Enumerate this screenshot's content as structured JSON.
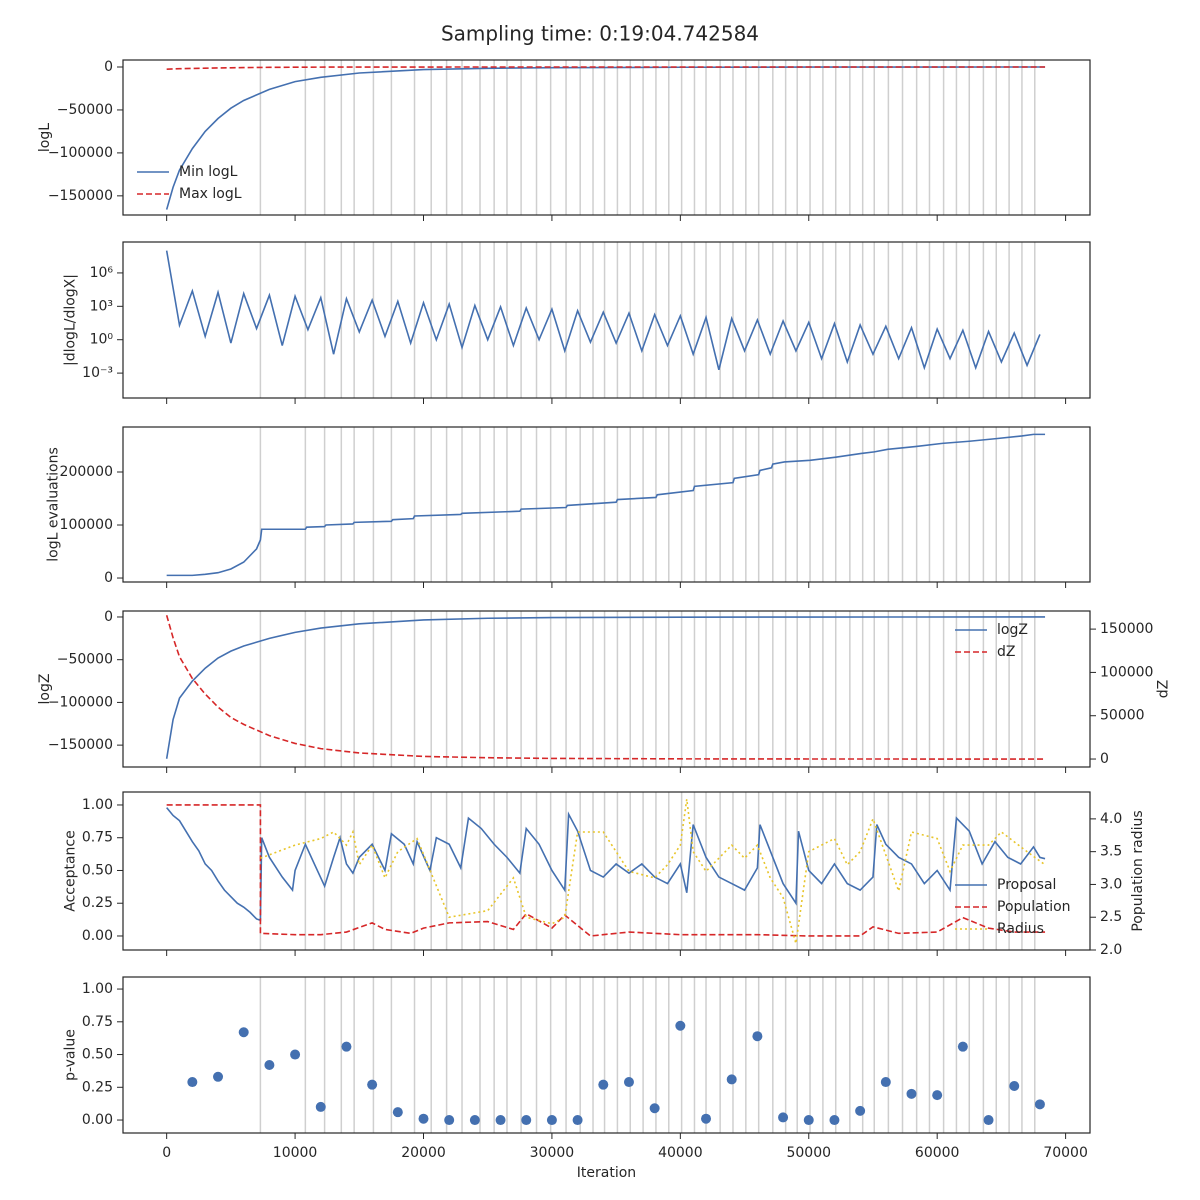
{
  "title": "Sampling time: 0:19:04.742584",
  "xaxis": {
    "label": "Iteration",
    "xlim": [
      -3400,
      71900
    ],
    "xticks": [
      0,
      10000,
      20000,
      30000,
      40000,
      50000,
      60000,
      70000
    ],
    "vlines": [
      7300,
      10800,
      12300,
      13600,
      14600,
      16100,
      17500,
      19300,
      20600,
      21800,
      23000,
      24400,
      25500,
      26500,
      27600,
      28800,
      29900,
      31100,
      32200,
      33200,
      34100,
      35100,
      36100,
      37100,
      38100,
      39100,
      40100,
      41100,
      42000,
      43100,
      44100,
      45100,
      46100,
      47200,
      48200,
      49100,
      50100,
      51100,
      52100,
      53200,
      54200,
      55100,
      56200,
      57300,
      58400,
      59400,
      60500,
      61500,
      62500,
      63600,
      64600,
      65600,
      66600,
      67600
    ]
  },
  "chart_data": [
    {
      "type": "line",
      "ylabel": "logL",
      "ylim": [
        -172300,
        8140
      ],
      "yticks": [
        {
          "value": 0,
          "label": "0"
        },
        {
          "value": -50000,
          "label": "−50000"
        },
        {
          "value": -100000,
          "label": "−100000"
        },
        {
          "value": -150000,
          "label": "−150000"
        }
      ],
      "legend": "lower left",
      "x": [
        0,
        500,
        1000,
        2000,
        3000,
        4000,
        5000,
        6000,
        8000,
        10000,
        12000,
        15000,
        20000,
        25000,
        30000,
        40000,
        50000,
        60000,
        68400
      ],
      "series": [
        {
          "name": "Min logL",
          "color": "#4470b0",
          "style": "solid",
          "values": [
            -166000,
            -140000,
            -120000,
            -95000,
            -75000,
            -60000,
            -48000,
            -39000,
            -26000,
            -17000,
            -12000,
            -7000,
            -3000,
            -1500,
            -800,
            -300,
            -100,
            -40,
            0
          ]
        },
        {
          "name": "Max logL",
          "color": "#d62728",
          "style": "dashed",
          "values": [
            -2500,
            -2200,
            -2000,
            -1700,
            -1400,
            -1100,
            -900,
            -700,
            -400,
            -250,
            -150,
            -80,
            -30,
            -10,
            0,
            0,
            0,
            0,
            0
          ]
        }
      ]
    },
    {
      "type": "line",
      "ylabel": "|dlogL/dlogX|",
      "log": true,
      "ylim": [
        5.8e-06,
        600000000
      ],
      "yticks": [
        {
          "value": 1000000,
          "label": "10⁶"
        },
        {
          "value": 1000,
          "label": "10³"
        },
        {
          "value": 1,
          "label": "10⁰"
        },
        {
          "value": 0.001,
          "label": "10⁻³"
        }
      ],
      "x": [
        0,
        1000,
        2000,
        3000,
        4000,
        5000,
        6000,
        7000,
        8000,
        9000,
        10000,
        11000,
        12000,
        13000,
        14000,
        15000,
        16000,
        17000,
        18000,
        19000,
        20000,
        21000,
        22000,
        23000,
        24000,
        25000,
        26000,
        27000,
        28000,
        29000,
        30000,
        31000,
        32000,
        33000,
        34000,
        35000,
        36000,
        37000,
        38000,
        39000,
        40000,
        41000,
        42000,
        43000,
        44000,
        45000,
        46000,
        47000,
        48000,
        49000,
        50000,
        51000,
        52000,
        53000,
        54000,
        55000,
        56000,
        57000,
        58000,
        59000,
        60000,
        61000,
        62000,
        63000,
        64000,
        65000,
        66000,
        67000,
        68000
      ],
      "series": [
        {
          "color": "#4470b0",
          "style": "solid",
          "values": [
            100000000,
            20,
            24000,
            2,
            18000,
            0.5,
            14000,
            10,
            10000,
            0.3,
            8000,
            8,
            6000,
            0.05,
            4800,
            5,
            3600,
            2,
            2800,
            0.5,
            2100,
            1,
            1600,
            0.2,
            1200,
            1,
            900,
            0.3,
            700,
            1,
            550,
            0.1,
            400,
            0.6,
            300,
            0.5,
            240,
            0.1,
            180,
            0.3,
            140,
            0.05,
            100,
            0.002,
            80,
            0.1,
            60,
            0.05,
            48,
            0.1,
            36,
            0.02,
            28,
            0.01,
            21,
            0.05,
            16,
            0.02,
            12,
            0.003,
            9,
            0.02,
            7,
            0.003,
            5.5,
            0.01,
            4,
            0.005,
            3
          ]
        }
      ]
    },
    {
      "type": "line",
      "ylabel": "logL evaluations",
      "ylim": [
        -7500,
        284900
      ],
      "yticks": [
        0,
        100000,
        200000
      ],
      "x": [
        0,
        2000,
        3000,
        4000,
        5000,
        6000,
        7000,
        7300,
        7400,
        10800,
        10900,
        12300,
        12400,
        14500,
        14600,
        17500,
        17600,
        19200,
        19300,
        22900,
        23000,
        27500,
        27600,
        31100,
        31200,
        35000,
        35100,
        38100,
        38200,
        41000,
        41100,
        44100,
        44200,
        46100,
        46200,
        47100,
        47200,
        48100,
        50100,
        52100,
        54100,
        55100,
        56200,
        58300,
        60400,
        62500,
        64600,
        66600,
        67500,
        68400
      ],
      "series": [
        {
          "color": "#4470b0",
          "style": "solid",
          "values": [
            5000,
            5000,
            7000,
            10000,
            17000,
            30000,
            55000,
            72000,
            92000,
            92000,
            96000,
            97000,
            100000,
            102000,
            105000,
            107000,
            110000,
            112000,
            117000,
            120000,
            122000,
            126000,
            130000,
            133000,
            137000,
            143000,
            148000,
            152000,
            157000,
            165000,
            173000,
            180000,
            188000,
            195000,
            203000,
            208000,
            215000,
            219000,
            222000,
            228000,
            235000,
            238000,
            243000,
            248000,
            254000,
            258000,
            263000,
            268000,
            271000,
            271000
          ]
        }
      ]
    },
    {
      "type": "line",
      "ylabel": "logZ",
      "y2label": "dZ",
      "ylim": [
        -175600,
        7000
      ],
      "yticks": [
        {
          "value": 0,
          "label": "0"
        },
        {
          "value": -50000,
          "label": "−50000"
        },
        {
          "value": -100000,
          "label": "−100000"
        },
        {
          "value": -150000,
          "label": "−150000"
        }
      ],
      "y2lim": [
        -9200,
        170900
      ],
      "y2ticks": [
        0,
        50000,
        100000,
        150000
      ],
      "legend": "upper right",
      "x": [
        0,
        500,
        1000,
        2000,
        3000,
        4000,
        5000,
        6000,
        8000,
        10000,
        12000,
        15000,
        20000,
        25000,
        30000,
        40000,
        50000,
        60000,
        68400
      ],
      "series": [
        {
          "name": "logZ",
          "color": "#4470b0",
          "style": "solid",
          "values": [
            -166000,
            -120000,
            -95000,
            -75000,
            -60000,
            -48000,
            -40000,
            -34000,
            -25000,
            -18000,
            -13000,
            -8000,
            -3500,
            -1500,
            -700,
            -200,
            -50,
            -10,
            0
          ]
        },
        {
          "name": "dZ",
          "color": "#d62728",
          "style": "dashed",
          "axis": "y2",
          "values": [
            166000,
            140000,
            118000,
            93000,
            75000,
            60000,
            48000,
            40000,
            27000,
            18000,
            12000,
            7000,
            3000,
            1500,
            700,
            200,
            50,
            10,
            0
          ]
        }
      ]
    },
    {
      "type": "line",
      "ylabel": "Acceptance",
      "y2label": "Population radius",
      "ylim": [
        -0.107,
        1.099
      ],
      "yticks": [
        {
          "value": 0,
          "label": "0.00"
        },
        {
          "value": 0.25,
          "label": "0.25"
        },
        {
          "value": 0.5,
          "label": "0.50"
        },
        {
          "value": 0.75,
          "label": "0.75"
        },
        {
          "value": 1,
          "label": "1.00"
        }
      ],
      "y2lim": [
        2.0,
        4.41
      ],
      "y2ticks": [
        {
          "value": 2,
          "label": "2.0"
        },
        2.5,
        {
          "value": 3,
          "label": "3.0"
        },
        3.5,
        {
          "value": 4,
          "label": "4.0"
        }
      ],
      "legend": "lower right",
      "series": [
        {
          "name": "Proposal",
          "color": "#4470b0",
          "style": "solid",
          "x": [
            0,
            500,
            1000,
            1500,
            2000,
            2500,
            3000,
            3500,
            4000,
            4500,
            5000,
            5500,
            6000,
            6500,
            7000,
            7300,
            7400,
            8000,
            9000,
            9800,
            10000,
            10800,
            11500,
            12300,
            13000,
            13500,
            14000,
            14500,
            15000,
            16000,
            17000,
            17500,
            18500,
            19200,
            19500,
            20500,
            21000,
            22000,
            22900,
            23500,
            24500,
            25500,
            26500,
            27500,
            28000,
            29000,
            30000,
            31000,
            31300,
            32000,
            33000,
            34000,
            35000,
            36000,
            37000,
            38000,
            39000,
            40000,
            40500,
            41000,
            42000,
            43000,
            44000,
            45000,
            46000,
            46200,
            47000,
            48000,
            49000,
            49200,
            50000,
            51000,
            52000,
            53000,
            54000,
            55000,
            55300,
            56000,
            57000,
            58000,
            59000,
            60000,
            61000,
            61500,
            62500,
            63500,
            64500,
            65500,
            66500,
            67500,
            68000,
            68400
          ],
          "values": [
            0.98,
            0.92,
            0.88,
            0.8,
            0.72,
            0.65,
            0.55,
            0.5,
            0.42,
            0.35,
            0.3,
            0.25,
            0.22,
            0.18,
            0.13,
            0.12,
            0.75,
            0.6,
            0.45,
            0.35,
            0.5,
            0.7,
            0.55,
            0.38,
            0.6,
            0.75,
            0.55,
            0.48,
            0.6,
            0.7,
            0.5,
            0.78,
            0.7,
            0.55,
            0.72,
            0.5,
            0.75,
            0.7,
            0.52,
            0.9,
            0.82,
            0.7,
            0.6,
            0.48,
            0.82,
            0.7,
            0.5,
            0.35,
            0.93,
            0.8,
            0.5,
            0.45,
            0.55,
            0.48,
            0.55,
            0.45,
            0.4,
            0.55,
            0.33,
            0.85,
            0.6,
            0.45,
            0.4,
            0.35,
            0.52,
            0.85,
            0.65,
            0.4,
            0.25,
            0.8,
            0.5,
            0.4,
            0.55,
            0.4,
            0.35,
            0.45,
            0.85,
            0.7,
            0.6,
            0.55,
            0.4,
            0.5,
            0.35,
            0.9,
            0.8,
            0.55,
            0.72,
            0.6,
            0.55,
            0.68,
            0.6,
            0.59
          ]
        },
        {
          "name": "Population",
          "color": "#d62728",
          "style": "dashed",
          "x": [
            0,
            7300,
            7300,
            10000,
            12000,
            14000,
            16000,
            17000,
            19000,
            20000,
            22000,
            25000,
            27000,
            28000,
            30000,
            31000,
            33000,
            36000,
            40000,
            46000,
            50000,
            54000,
            55000,
            57000,
            60000,
            62000,
            64000,
            66000,
            68400
          ],
          "values": [
            1.0,
            1.0,
            0.02,
            0.01,
            0.01,
            0.03,
            0.1,
            0.05,
            0.02,
            0.06,
            0.1,
            0.11,
            0.05,
            0.17,
            0.06,
            0.16,
            0.0,
            0.03,
            0.01,
            0.01,
            0.0,
            0.0,
            0.07,
            0.02,
            0.03,
            0.14,
            0.06,
            0.03,
            0.03
          ]
        },
        {
          "name": "Radius",
          "color": "#e8c52a",
          "style": "dotted",
          "axis": "y2",
          "x": [
            7300,
            10000,
            12000,
            13000,
            14000,
            14500,
            15000,
            16000,
            17000,
            18000,
            19500,
            22000,
            25000,
            27000,
            28000,
            30000,
            31000,
            32000,
            34000,
            36000,
            38000,
            39000,
            40000,
            40500,
            41000,
            42000,
            44000,
            45000,
            46000,
            47000,
            48000,
            49000,
            50000,
            52000,
            53000,
            54000,
            55000,
            57000,
            58000,
            60000,
            61000,
            62000,
            64000,
            65000,
            67000,
            68400
          ],
          "values": [
            3.4,
            3.6,
            3.7,
            3.8,
            3.6,
            3.8,
            3.3,
            3.6,
            3.1,
            3.5,
            3.7,
            2.5,
            2.6,
            3.1,
            2.5,
            2.4,
            2.5,
            3.8,
            3.8,
            3.2,
            3.1,
            3.3,
            3.6,
            4.3,
            3.5,
            3.2,
            3.6,
            3.4,
            3.6,
            3.1,
            2.8,
            2.1,
            3.5,
            3.7,
            3.3,
            3.5,
            4.0,
            2.9,
            3.8,
            3.7,
            3.2,
            3.6,
            3.6,
            3.8,
            3.5,
            3.3
          ]
        }
      ]
    },
    {
      "type": "scatter",
      "ylabel": "p-value",
      "ylim": [
        -0.099,
        1.092
      ],
      "yticks": [
        {
          "value": 0,
          "label": "0.00"
        },
        {
          "value": 0.25,
          "label": "0.25"
        },
        {
          "value": 0.5,
          "label": "0.50"
        },
        {
          "value": 0.75,
          "label": "0.75"
        },
        {
          "value": 1,
          "label": "1.00"
        }
      ],
      "x": [
        2000,
        4000,
        6000,
        8000,
        10000,
        12000,
        14000,
        16000,
        18000,
        20000,
        22000,
        24000,
        26000,
        28000,
        30000,
        32000,
        34000,
        36000,
        38000,
        40000,
        42000,
        44000,
        46000,
        48000,
        50000,
        52000,
        54000,
        56000,
        58000,
        60000,
        62000,
        64000,
        66000,
        68000
      ],
      "series": [
        {
          "color": "#4470b0",
          "values": [
            0.29,
            0.33,
            0.67,
            0.42,
            0.5,
            0.1,
            0.56,
            0.27,
            0.06,
            0.01,
            0.0,
            0.0,
            0.0,
            0.0,
            0.0,
            0.0,
            0.27,
            0.29,
            0.09,
            0.72,
            0.01,
            0.31,
            0.64,
            0.02,
            0.0,
            0.0,
            0.07,
            0.29,
            0.2,
            0.19,
            0.56,
            0.0,
            0.26,
            0.12
          ]
        }
      ]
    }
  ]
}
